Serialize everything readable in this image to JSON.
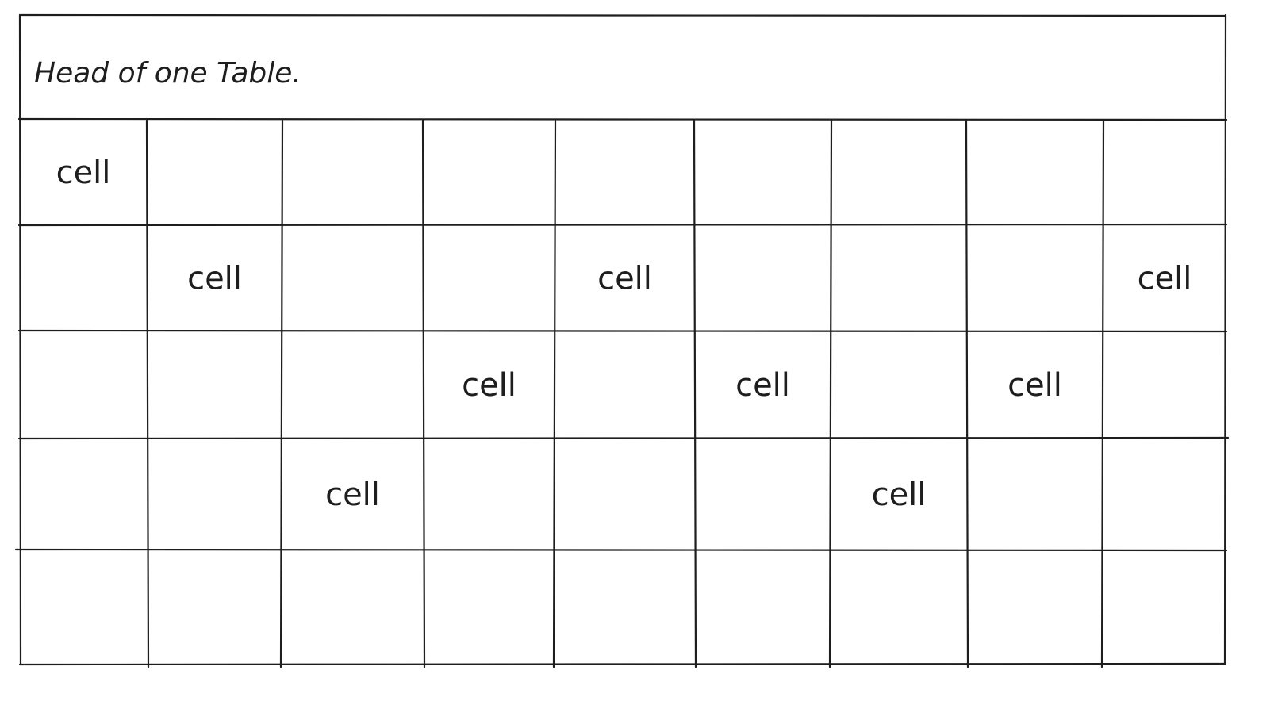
{
  "table": {
    "title": "Head of one Table.",
    "columns": 9,
    "rows": 5,
    "cells": [
      [
        "cell",
        "",
        "",
        "",
        "",
        "",
        "",
        "",
        ""
      ],
      [
        "",
        "cell",
        "",
        "",
        "cell",
        "",
        "",
        "",
        "cell"
      ],
      [
        "",
        "",
        "",
        "cell",
        "",
        "cell",
        "",
        "cell",
        ""
      ],
      [
        "",
        "",
        "cell",
        "",
        "",
        "",
        "cell",
        "",
        ""
      ],
      [
        "",
        "",
        "",
        "",
        "",
        "",
        "",
        "",
        ""
      ]
    ]
  },
  "colors": {
    "ink": "#1e1e1e",
    "background": "#ffffff"
  }
}
